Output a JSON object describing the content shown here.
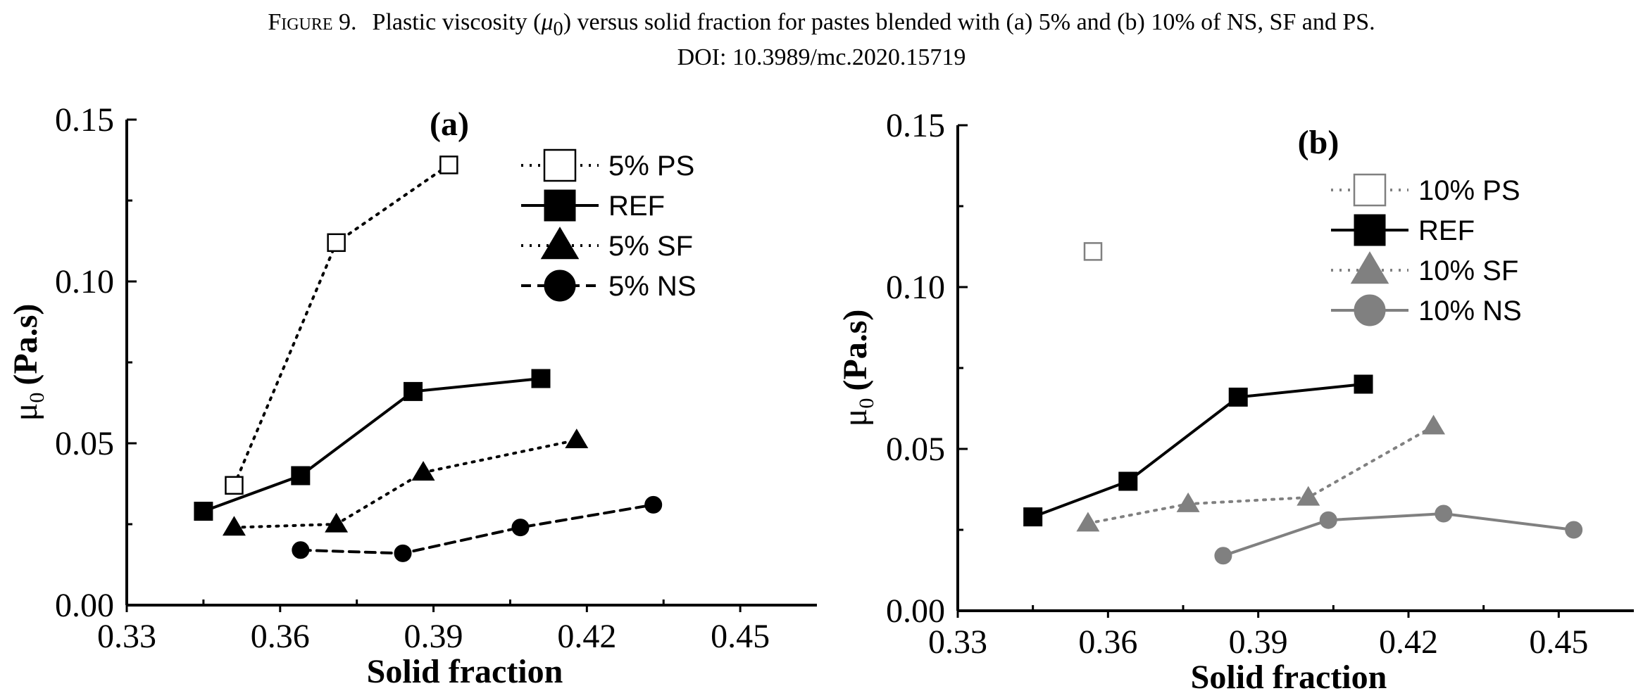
{
  "caption": {
    "figure_label": "Figure 9.",
    "line1_pre": "Plastic viscosity (",
    "mu_symbol": "μ",
    "mu_sub": "0",
    "line1_post": ") versus solid fraction for pastes blended with (a) 5% and (b) 10% of NS, SF and PS.",
    "line2": "DOI: 10.3989/mc.2020.15719"
  },
  "chart_data": [
    {
      "type": "line",
      "panel_label": "(a)",
      "xlabel": "Solid fraction",
      "ylabel_symbol": "μ",
      "ylabel_sub": "0",
      "ylabel_unit": "(Pa.s)",
      "xlim": [
        0.33,
        0.465
      ],
      "ylim": [
        0.0,
        0.15
      ],
      "xticks": [
        "0.33",
        "0.36",
        "0.39",
        "0.42",
        "0.45"
      ],
      "yticks": [
        "0.00",
        "0.05",
        "0.10",
        "0.15"
      ],
      "legend_position": "top-right",
      "series": [
        {
          "name": "5% PS",
          "marker": "square-open",
          "line": "dotted",
          "color": "#000000",
          "x": [
            0.351,
            0.371,
            0.393
          ],
          "y": [
            0.037,
            0.112,
            0.136
          ]
        },
        {
          "name": "REF",
          "marker": "square",
          "line": "solid",
          "color": "#000000",
          "x": [
            0.345,
            0.364,
            0.386,
            0.411
          ],
          "y": [
            0.029,
            0.04,
            0.066,
            0.07
          ]
        },
        {
          "name": "5% SF",
          "marker": "triangle",
          "line": "dotted",
          "color": "#000000",
          "x": [
            0.351,
            0.371,
            0.388,
            0.418
          ],
          "y": [
            0.024,
            0.025,
            0.041,
            0.051
          ]
        },
        {
          "name": "5% NS",
          "marker": "circle",
          "line": "dashed",
          "color": "#000000",
          "x": [
            0.364,
            0.384,
            0.407,
            0.433
          ],
          "y": [
            0.017,
            0.016,
            0.024,
            0.031
          ]
        }
      ]
    },
    {
      "type": "line",
      "panel_label": "(b)",
      "xlabel": "Solid fraction",
      "ylabel_symbol": "μ",
      "ylabel_sub": "0",
      "ylabel_unit": "(Pa.s)",
      "xlim": [
        0.33,
        0.465
      ],
      "ylim": [
        0.0,
        0.15
      ],
      "xticks": [
        "0.33",
        "0.36",
        "0.39",
        "0.42",
        "0.45"
      ],
      "yticks": [
        "0.00",
        "0.05",
        "0.10",
        "0.15"
      ],
      "legend_position": "top-right",
      "series": [
        {
          "name": "10% PS",
          "marker": "square-open",
          "line": "dotted",
          "color": "#808080",
          "x": [
            0.357
          ],
          "y": [
            0.111
          ]
        },
        {
          "name": "REF",
          "marker": "square",
          "line": "solid",
          "color": "#000000",
          "x": [
            0.345,
            0.364,
            0.386,
            0.411
          ],
          "y": [
            0.029,
            0.04,
            0.066,
            0.07
          ]
        },
        {
          "name": "10% SF",
          "marker": "triangle",
          "line": "dotted",
          "color": "#808080",
          "x": [
            0.356,
            0.376,
            0.4,
            0.425
          ],
          "y": [
            0.027,
            0.033,
            0.035,
            0.057
          ]
        },
        {
          "name": "10% NS",
          "marker": "circle",
          "line": "solid",
          "color": "#808080",
          "x": [
            0.383,
            0.404,
            0.427,
            0.453
          ],
          "y": [
            0.017,
            0.028,
            0.03,
            0.025
          ]
        }
      ]
    }
  ]
}
